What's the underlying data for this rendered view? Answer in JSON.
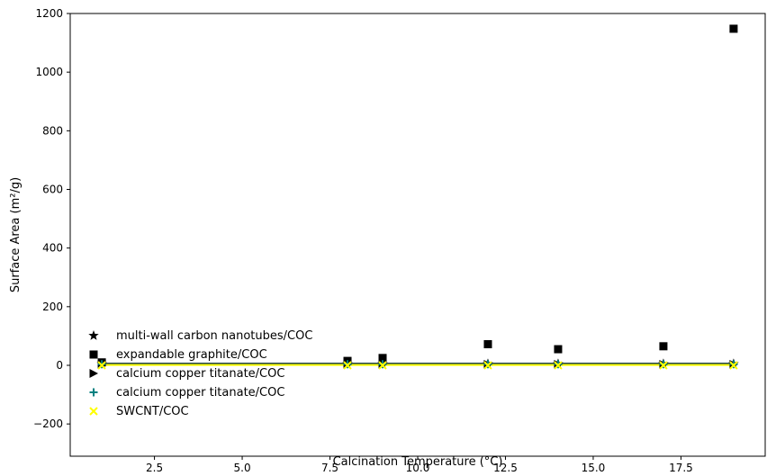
{
  "chart_data": {
    "type": "scatter",
    "title": "",
    "xlabel": "Calcination Temperature (°C)",
    "ylabel": "Surface Area (m²/g)",
    "xlim": [
      0.1,
      19.9
    ],
    "ylim": [
      -310,
      1200
    ],
    "x_ticks": [
      2.5,
      5.0,
      7.5,
      10.0,
      12.5,
      15.0,
      17.5
    ],
    "x_tick_labels": [
      "2.5",
      "5.0",
      "7.5",
      "10.0",
      "12.5",
      "15.0",
      "17.5"
    ],
    "y_ticks": [
      -200,
      0,
      200,
      400,
      600,
      800,
      1000,
      1200
    ],
    "y_tick_labels": [
      "−200",
      "0",
      "200",
      "400",
      "600",
      "800",
      "1000",
      "1200"
    ],
    "grid": false,
    "legend_position": "lower-left",
    "series": [
      {
        "name": "multi-wall carbon nanotubes/COC",
        "marker": "star",
        "color": "#000000",
        "x": [
          1,
          8,
          9,
          12,
          14,
          17,
          19
        ],
        "y": [
          5,
          5,
          5,
          5,
          5,
          5,
          5
        ]
      },
      {
        "name": "expandable graphite/COC",
        "marker": "square",
        "color": "#000000",
        "x": [
          1,
          8,
          9,
          12,
          14,
          17,
          19
        ],
        "y": [
          10,
          15,
          25,
          72,
          55,
          65,
          1148
        ]
      },
      {
        "name": "calcium copper titanate/COC",
        "marker": "triangle-right",
        "color": "#000000",
        "x": [
          1,
          8,
          9,
          12,
          14,
          17,
          19
        ],
        "y": [
          3,
          3,
          3,
          3,
          3,
          3,
          3
        ]
      },
      {
        "name": "calcium copper titanate/COC",
        "marker": "plus",
        "color": "#008080",
        "x": [
          1,
          8,
          9,
          12,
          14,
          17,
          19
        ],
        "y": [
          4,
          4,
          4,
          4,
          4,
          4,
          4
        ]
      },
      {
        "name": "SWCNT/COC",
        "marker": "x",
        "color": "#ffff00",
        "x": [
          1,
          8,
          9,
          12,
          14,
          17,
          19
        ],
        "y": [
          0,
          0,
          0,
          0,
          0,
          0,
          0
        ]
      }
    ],
    "lines": [
      {
        "color": "#2f4f4f",
        "x": [
          1,
          19
        ],
        "y": [
          6,
          6
        ]
      },
      {
        "color": "#ffff00",
        "x": [
          1,
          19
        ],
        "y": [
          1,
          1
        ]
      }
    ]
  }
}
